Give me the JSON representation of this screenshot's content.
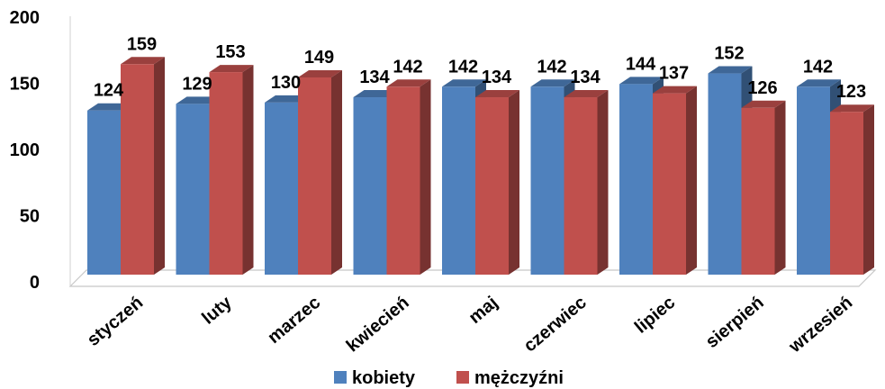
{
  "chart_data": {
    "type": "bar",
    "categories": [
      "styczeń",
      "luty",
      "marzec",
      "kwiecień",
      "maj",
      "czerwiec",
      "lipiec",
      "sierpień",
      "wrzesień"
    ],
    "series": [
      {
        "name": "kobiety",
        "color": "#4F81BD",
        "values": [
          124,
          129,
          130,
          134,
          142,
          142,
          144,
          152,
          142
        ]
      },
      {
        "name": "mężczyźni",
        "color": "#C0504D",
        "values": [
          159,
          153,
          149,
          142,
          134,
          134,
          137,
          126,
          123
        ]
      }
    ],
    "yticks": [
      "0",
      "50",
      "100",
      "150",
      "200"
    ],
    "ylim": [
      0,
      200
    ],
    "title": "",
    "xlabel": "",
    "ylabel": "",
    "grid": false,
    "style": "3d",
    "legend_position": "bottom"
  }
}
